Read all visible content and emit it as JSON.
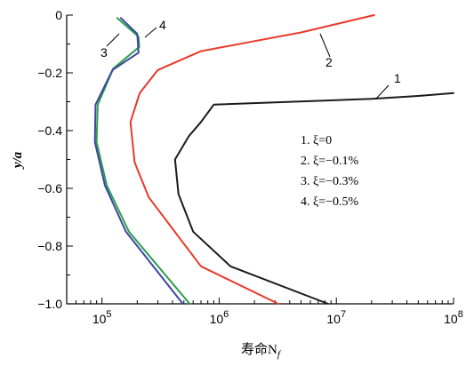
{
  "chart_data": {
    "type": "line",
    "title": "",
    "xlabel": "寿命N_f",
    "ylabel": "y/a",
    "x_scale": "log",
    "xlim": [
      50000,
      100000000
    ],
    "ylim": [
      -1.0,
      0
    ],
    "x_ticks": [
      100000,
      1000000,
      10000000,
      100000000
    ],
    "x_tick_labels": [
      {
        "base": "10",
        "exp": "5"
      },
      {
        "base": "10",
        "exp": "6"
      },
      {
        "base": "10",
        "exp": "7"
      },
      {
        "base": "10",
        "exp": "8"
      }
    ],
    "y_ticks": [
      0,
      -0.2,
      -0.4,
      -0.6,
      -0.8,
      -1.0
    ],
    "y_tick_labels": [
      "0",
      "−0.2",
      "−0.4",
      "−0.6",
      "−0.8",
      "−1.0"
    ],
    "grid": false,
    "legend_placement": "center-right",
    "legend_items": [
      "1. ξ=0",
      "2. ξ=−0.1%",
      "3. ξ=−0.3%",
      "4. ξ=−0.5%"
    ],
    "series": [
      {
        "label": "1",
        "color": "#1a1a1a",
        "points": [
          [
            100000000,
            -0.27
          ],
          [
            50000000,
            -0.28
          ],
          [
            20000000,
            -0.29
          ],
          [
            900000,
            -0.31
          ],
          [
            700000,
            -0.37
          ],
          [
            550000,
            -0.42
          ],
          [
            420000,
            -0.5
          ],
          [
            450000,
            -0.62
          ],
          [
            600000,
            -0.75
          ],
          [
            1250000,
            -0.87
          ],
          [
            8500000,
            -1.0
          ]
        ]
      },
      {
        "label": "2",
        "color": "#e8392b",
        "points": [
          [
            21000000,
            0
          ],
          [
            5000000,
            -0.06
          ],
          [
            2000000,
            -0.09
          ],
          [
            700000,
            -0.125
          ],
          [
            300000,
            -0.19
          ],
          [
            210000,
            -0.27
          ],
          [
            175000,
            -0.37
          ],
          [
            190000,
            -0.51
          ],
          [
            250000,
            -0.63
          ],
          [
            400000,
            -0.74
          ],
          [
            700000,
            -0.87
          ],
          [
            3200000,
            -1.0
          ]
        ]
      },
      {
        "label": "3",
        "color": "#2aa048",
        "points": [
          [
            135000,
            -0.01
          ],
          [
            205000,
            -0.075
          ],
          [
            208000,
            -0.11
          ],
          [
            125000,
            -0.185
          ],
          [
            92000,
            -0.31
          ],
          [
            90000,
            -0.44
          ],
          [
            110000,
            -0.59
          ],
          [
            170000,
            -0.75
          ],
          [
            560000,
            -1.0
          ]
        ]
      },
      {
        "label": "4",
        "color": "#3e44a6",
        "points": [
          [
            145000,
            -0.01
          ],
          [
            200000,
            -0.065
          ],
          [
            205000,
            -0.13
          ],
          [
            123000,
            -0.19
          ],
          [
            88000,
            -0.31
          ],
          [
            87000,
            -0.44
          ],
          [
            106000,
            -0.59
          ],
          [
            160000,
            -0.75
          ],
          [
            490000,
            -1.0
          ]
        ]
      }
    ],
    "callouts": [
      {
        "text": "1",
        "series": "1"
      },
      {
        "text": "2",
        "series": "2"
      },
      {
        "text": "3",
        "series": "3"
      },
      {
        "text": "4",
        "series": "4"
      }
    ]
  }
}
